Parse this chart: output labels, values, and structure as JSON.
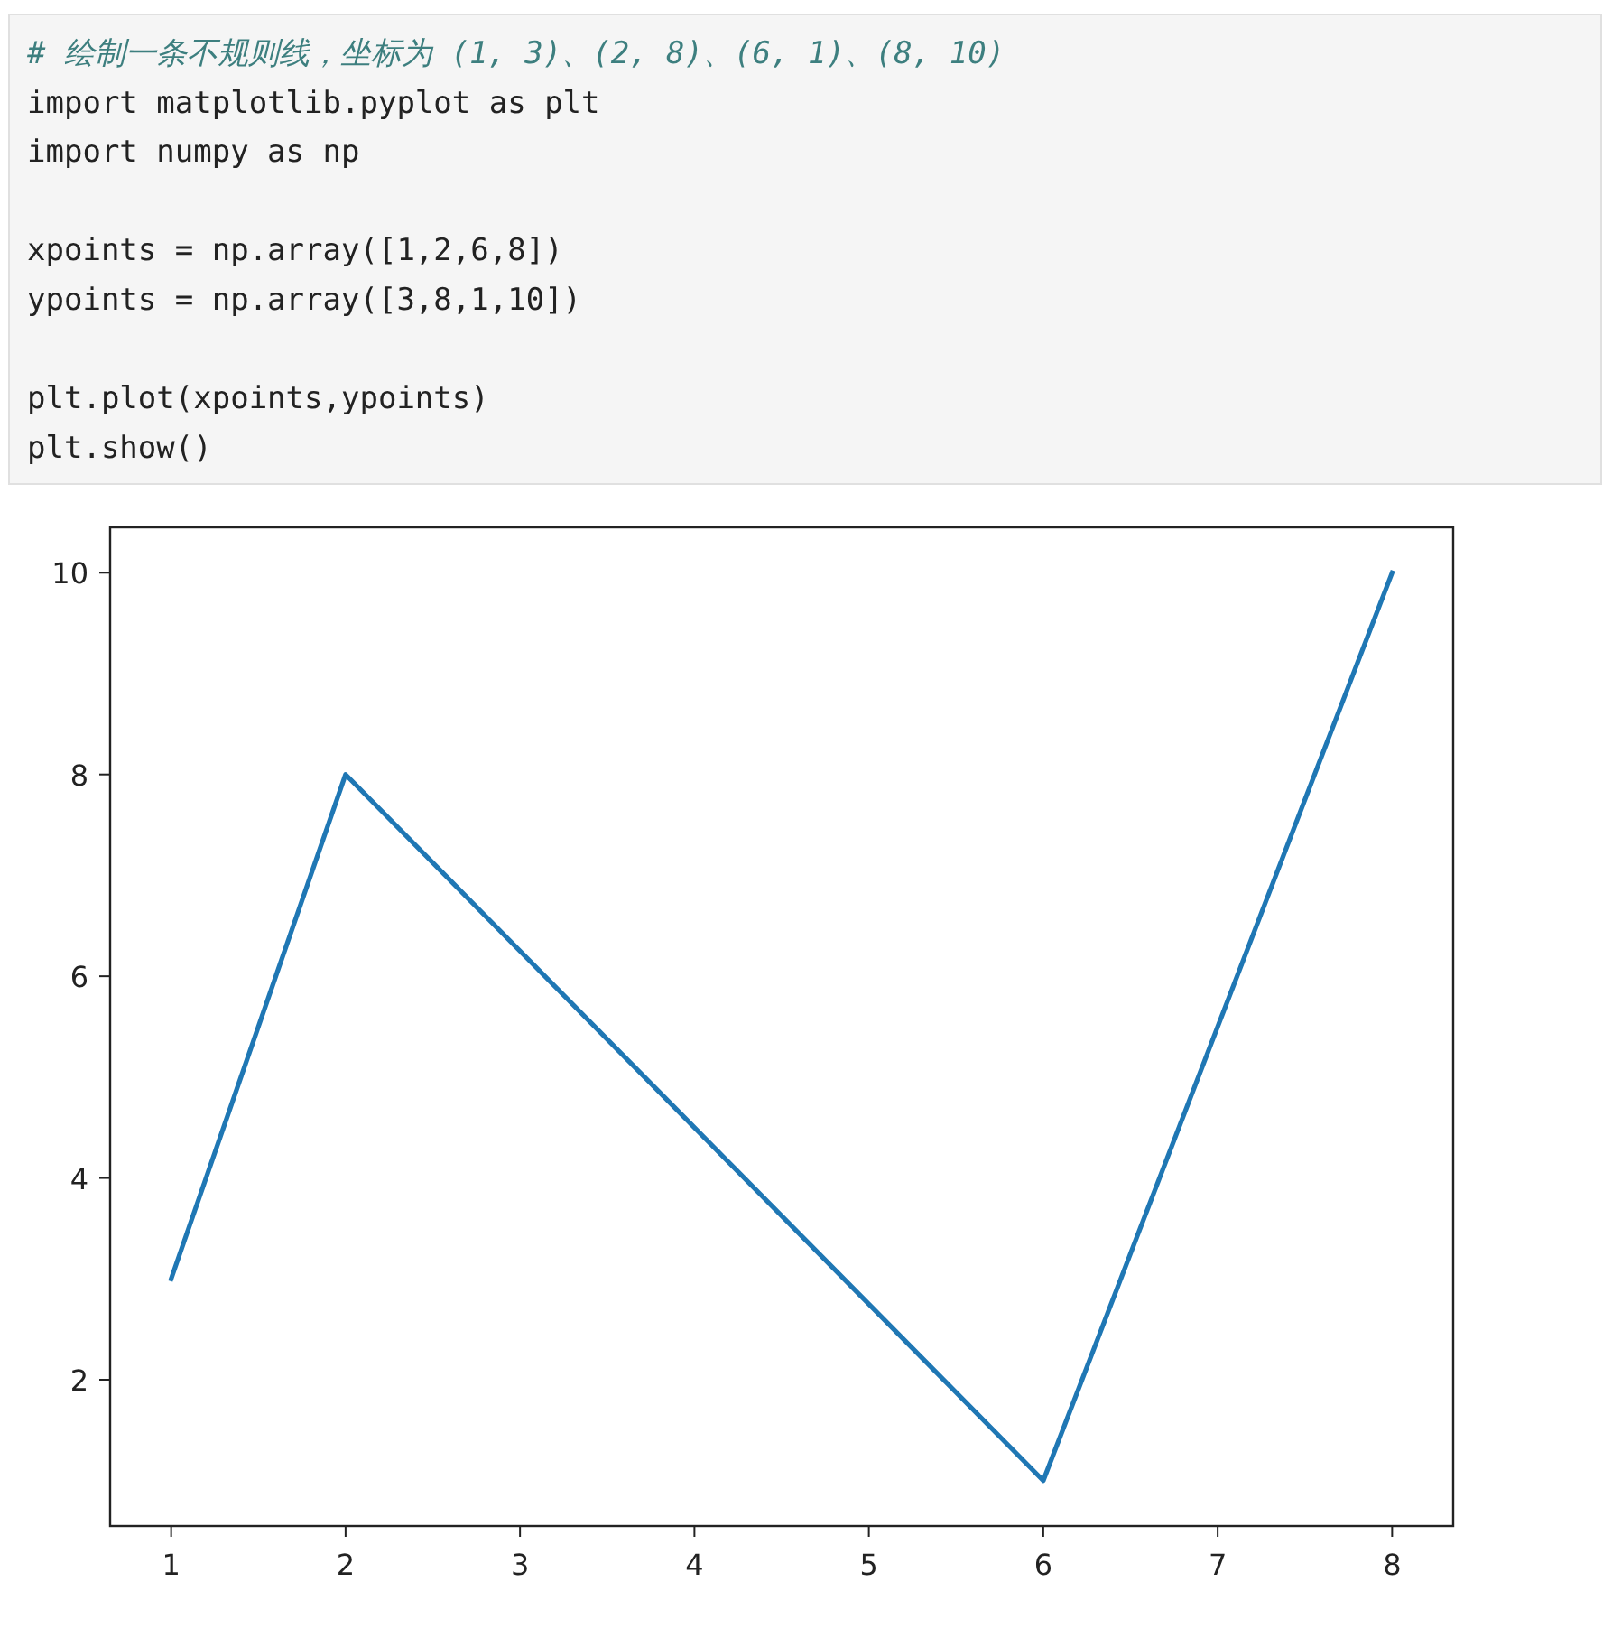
{
  "chart_data": {
    "type": "line",
    "annotations": [
      "# 绘制一条不规则线，坐标为 (1, 3)、(2, 8)、(6, 1)、(8, 10)",
      "import matplotlib.pyplot as plt\nimport numpy as np\n\nxpoints = np.array([1,2,6,8])\nypoints = np.array([3,8,1,10])\n\nplt.plot(xpoints,ypoints)\nplt.show()"
    ],
    "x": [
      1,
      2,
      6,
      8
    ],
    "series": [
      {
        "color": "#1f77b4",
        "values": [
          3,
          8,
          1,
          10
        ]
      }
    ],
    "xlim": [
      0.65,
      8.35
    ],
    "ylim": [
      0.55,
      10.45
    ],
    "xticks": [
      1,
      2,
      3,
      4,
      5,
      6,
      7,
      8
    ],
    "yticks": [
      2,
      4,
      6,
      8,
      10
    ],
    "line_style": "solid"
  }
}
